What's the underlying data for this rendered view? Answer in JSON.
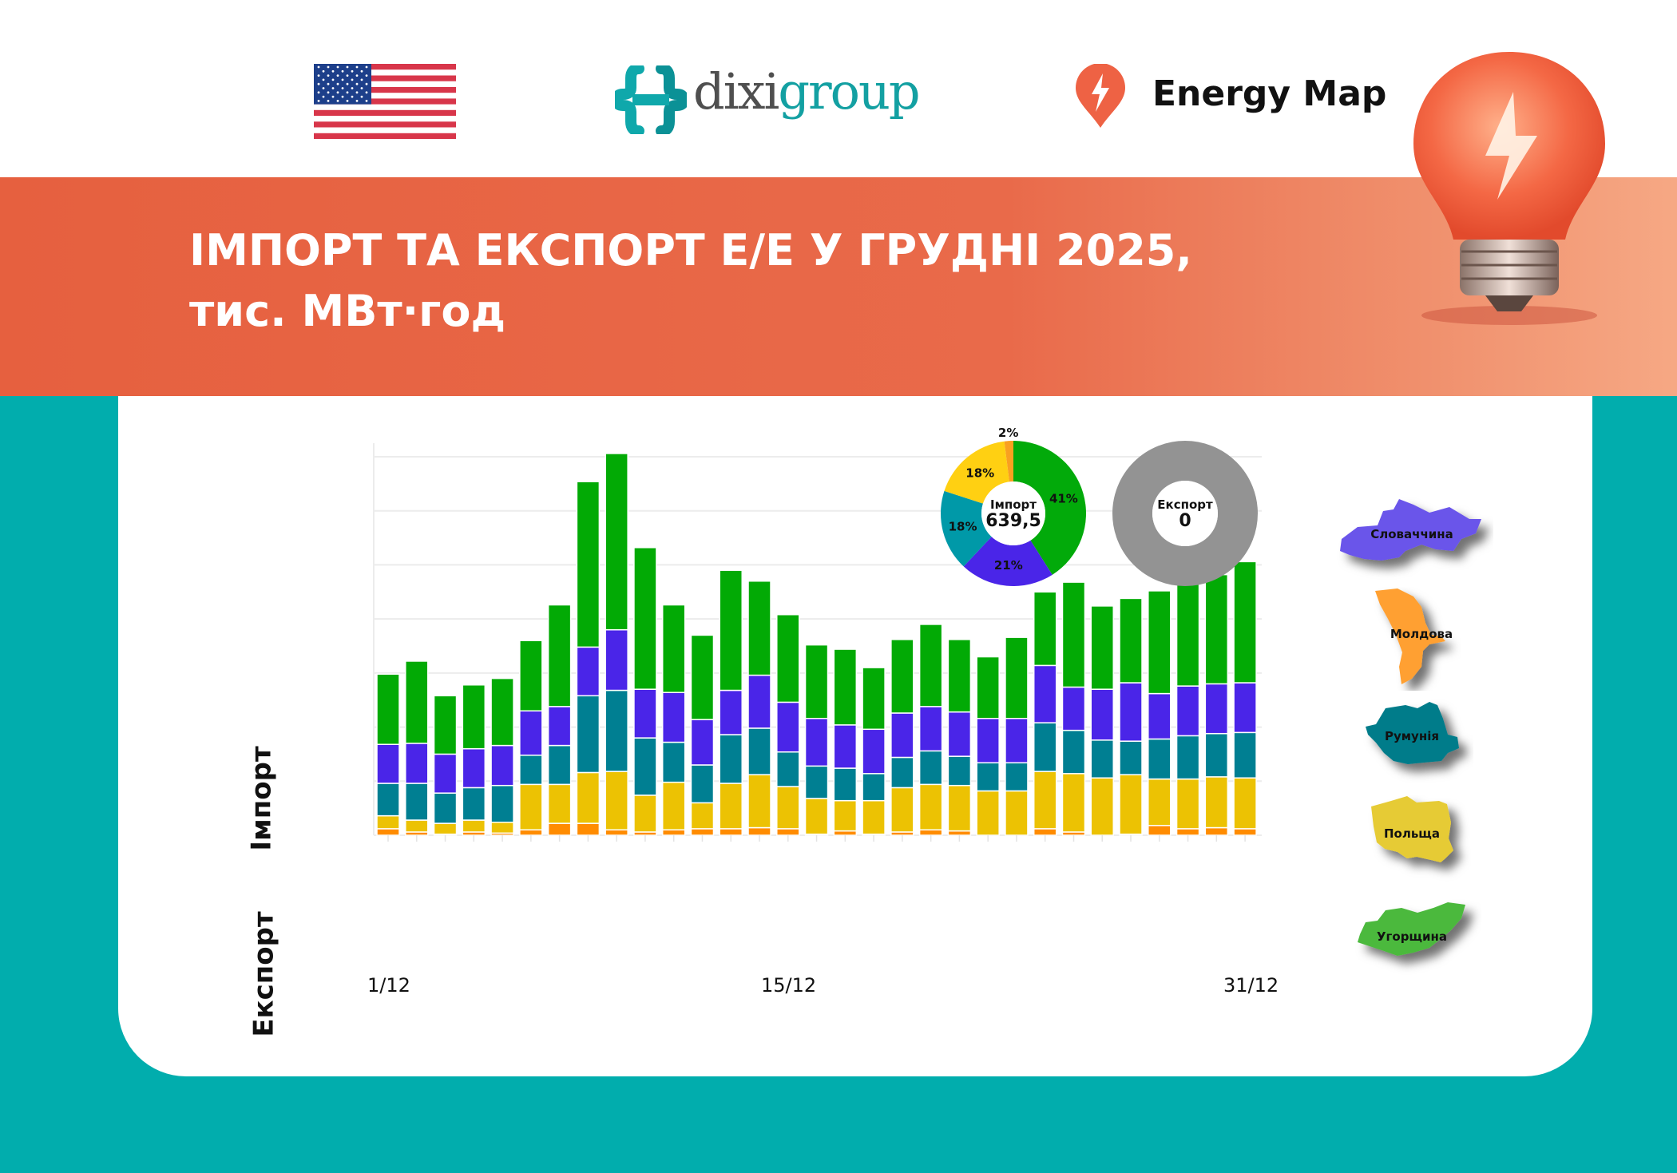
{
  "header": {
    "flag_icon": "us-flag",
    "logo_dixigroup": {
      "part1": "dixi",
      "part2": "group"
    },
    "energy_map": {
      "icon": "lightning-pin-icon",
      "label": "Energy Map"
    }
  },
  "banner": {
    "title_line1": "ІМПОРТ ТА ЕКСПОРТ Е/Е У ГРУДНІ 2025,",
    "title_line2": "тис. МВт·год"
  },
  "side_labels": {
    "import": "Імпорт",
    "export": "Експорт"
  },
  "colors": {
    "Словаччина": "#4a25e8",
    "Молдова": "#ff8c00",
    "Румунія": "#007f92",
    "Польща": "#ecc203",
    "Угорщина": "#02aa05",
    "export_donut": "#939393",
    "banner": "#e8674a",
    "background": "#01adad"
  },
  "legend": [
    {
      "name": "Словаччина",
      "color": "#6a54ea"
    },
    {
      "name": "Молдова",
      "color": "#ffa033"
    },
    {
      "name": "Румунія",
      "color": "#047b8a"
    },
    {
      "name": "Польща",
      "color": "#e6cb36"
    },
    {
      "name": "Угорщина",
      "color": "#4cb93c"
    }
  ],
  "chart_data": [
    {
      "type": "bar",
      "stacked": true,
      "categories": [
        "1/12",
        "2/12",
        "3/12",
        "4/12",
        "5/12",
        "6/12",
        "7/12",
        "8/12",
        "9/12",
        "10/12",
        "11/12",
        "12/12",
        "13/12",
        "14/12",
        "15/12",
        "16/12",
        "17/12",
        "18/12",
        "19/12",
        "20/12",
        "21/12",
        "22/12",
        "23/12",
        "24/12",
        "25/12",
        "26/12",
        "27/12",
        "28/12",
        "29/12",
        "30/12",
        "31/12"
      ],
      "tick_labels": [
        "1/12",
        "15/12",
        "31/12"
      ],
      "ylim": [
        0,
        35
      ],
      "grid": true,
      "series": [
        {
          "name": "Молдова",
          "values": [
            0.6,
            0.3,
            0.1,
            0.3,
            0.2,
            0.5,
            1.1,
            1.1,
            0.5,
            0.3,
            0.5,
            0.6,
            0.6,
            0.7,
            0.6,
            0.1,
            0.4,
            0.1,
            0.3,
            0.5,
            0.4,
            0,
            0,
            0.6,
            0.3,
            0,
            0.1,
            0.9,
            0.6,
            0.7,
            0.6
          ]
        },
        {
          "name": "Польща",
          "values": [
            1.2,
            1.1,
            1.0,
            1.1,
            1.0,
            4.2,
            3.6,
            4.7,
            5.4,
            3.4,
            4.4,
            2.4,
            4.2,
            4.9,
            3.9,
            3.3,
            2.8,
            3.1,
            4.1,
            4.2,
            4.2,
            4.1,
            4.1,
            5.3,
            5.4,
            5.3,
            5.5,
            4.3,
            4.6,
            4.7,
            4.7
          ]
        },
        {
          "name": "Румунія",
          "values": [
            3.0,
            3.4,
            2.8,
            3.0,
            3.4,
            2.7,
            3.6,
            7.1,
            7.5,
            5.3,
            3.7,
            3.5,
            4.5,
            4.3,
            3.2,
            3.0,
            3.0,
            2.5,
            2.8,
            3.1,
            2.7,
            2.6,
            2.6,
            4.5,
            4.0,
            3.5,
            3.1,
            3.7,
            4.0,
            4.0,
            4.2
          ]
        },
        {
          "name": "Словаччина",
          "values": [
            3.6,
            3.7,
            3.6,
            3.6,
            3.7,
            4.1,
            3.6,
            4.5,
            5.6,
            4.5,
            4.6,
            4.2,
            4.1,
            4.9,
            4.6,
            4.4,
            4.0,
            4.1,
            4.1,
            4.1,
            4.1,
            4.1,
            4.1,
            5.3,
            4.0,
            4.7,
            5.4,
            4.2,
            4.6,
            4.6,
            4.6
          ]
        },
        {
          "name": "Угорщина",
          "values": [
            6.5,
            7.6,
            5.4,
            5.9,
            6.2,
            6.5,
            9.4,
            15.3,
            16.3,
            13.1,
            8.1,
            7.8,
            11.1,
            8.7,
            8.1,
            6.8,
            7.0,
            5.7,
            6.8,
            7.6,
            6.7,
            5.7,
            7.5,
            6.8,
            9.7,
            7.7,
            7.8,
            9.5,
            9.7,
            10.1,
            11.2
          ]
        }
      ]
    },
    {
      "type": "pie",
      "donut": true,
      "center_label": "Імпорт",
      "center_value": "639,5",
      "slices": [
        {
          "name": "Угорщина",
          "value": 41,
          "label": "41%",
          "color": "#02aa0a"
        },
        {
          "name": "Словаччина",
          "value": 21,
          "label": "21%",
          "color": "#4a25e8"
        },
        {
          "name": "Румунія",
          "value": 18,
          "label": "18%",
          "color": "#0099a8"
        },
        {
          "name": "Польща",
          "value": 18,
          "label": "18%",
          "color": "#ffd012"
        },
        {
          "name": "Молдова",
          "value": 2,
          "label": "2%",
          "color": "#f9a020"
        }
      ]
    },
    {
      "type": "pie",
      "donut": true,
      "center_label": "Експорт",
      "center_value": "0",
      "slices": []
    }
  ]
}
